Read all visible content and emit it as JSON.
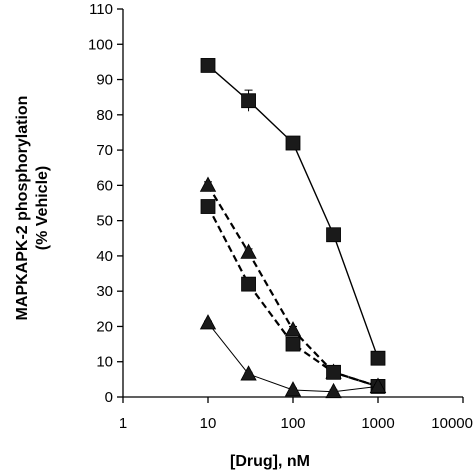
{
  "chart_data": {
    "type": "scatter",
    "xlabel": "[Drug], nM",
    "ylabel_lines": [
      "MAPKAPK-2 phosphorylation",
      "(% Vehicle)"
    ],
    "x_scale": "log",
    "xlim": [
      1,
      10000
    ],
    "ylim": [
      0,
      110
    ],
    "x_ticks": [
      1,
      10,
      100,
      1000,
      10000
    ],
    "x_tick_labels": [
      "1",
      "10",
      "100",
      "1000",
      "10000"
    ],
    "y_ticks": [
      0,
      10,
      20,
      30,
      40,
      50,
      60,
      70,
      80,
      90,
      100,
      110
    ],
    "y_tick_labels": [
      "0",
      "10",
      "20",
      "30",
      "40",
      "50",
      "60",
      "70",
      "80",
      "90",
      "100",
      "110"
    ],
    "grid": false,
    "legend": "none",
    "series": [
      {
        "marker": "square",
        "line": "solid",
        "x": [
          10,
          30,
          100,
          300,
          1000
        ],
        "y": [
          94,
          84,
          72,
          46,
          11
        ],
        "err": [
          1,
          3,
          1,
          1,
          1
        ]
      },
      {
        "marker": "triangle",
        "line": "dashed",
        "x": [
          10,
          30,
          100,
          300,
          1000
        ],
        "y": [
          60,
          41,
          19,
          7,
          3
        ],
        "err": [
          1,
          1,
          1,
          1,
          1
        ]
      },
      {
        "marker": "square",
        "line": "dashed",
        "x": [
          10,
          30,
          100,
          300,
          1000
        ],
        "y": [
          54,
          32,
          15,
          7,
          3
        ],
        "err": [
          1,
          1,
          1,
          1,
          1
        ]
      },
      {
        "marker": "triangle",
        "line": "thin",
        "x": [
          10,
          30,
          100,
          300,
          1000
        ],
        "y": [
          21,
          6.5,
          2,
          1.5,
          3
        ],
        "err": [
          0.5,
          0.5,
          0.5,
          0.5,
          0.5
        ]
      }
    ]
  }
}
